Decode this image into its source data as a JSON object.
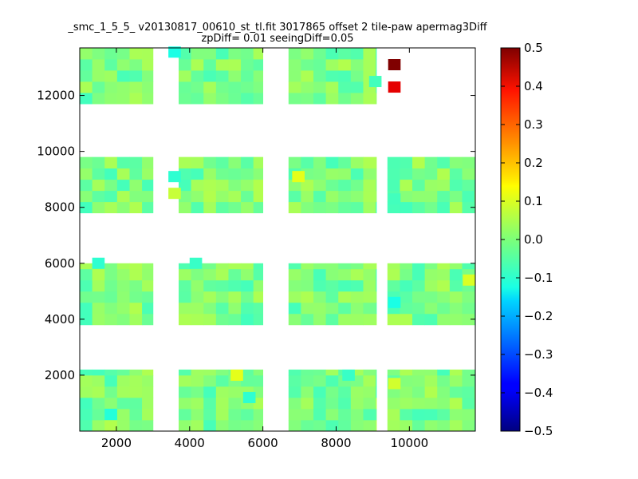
{
  "chart_data": {
    "type": "heatmap",
    "title": "_smc_1_5_5_ v20130817_00610_st_tl.fit 3017865 offset 2 tile-paw apermag3Diff",
    "subtitle": "zpDiff= 0.01 seeingDiff=0.05",
    "xlabel": "",
    "ylabel": "",
    "xlim": [
      1000,
      11800
    ],
    "ylim": [
      0,
      13700
    ],
    "x_ticks": [
      2000,
      4000,
      6000,
      8000,
      10000
    ],
    "y_ticks": [
      2000,
      4000,
      6000,
      8000,
      10000,
      12000
    ],
    "x_tick_labels": [
      "2000",
      "4000",
      "6000",
      "8000",
      "10000"
    ],
    "y_tick_labels": [
      "2000",
      "4000",
      "6000",
      "8000",
      "10000",
      "12000"
    ],
    "colorbar": {
      "min": -0.5,
      "max": 0.5,
      "colormap": "jet",
      "ticks": [
        0.5,
        0.4,
        0.3,
        0.2,
        0.1,
        0.0,
        -0.1,
        -0.2,
        -0.3,
        -0.4,
        -0.5
      ],
      "tick_labels": [
        "0.5",
        "0.4",
        "0.3",
        "0.2",
        "0.1",
        "0.0",
        "−0.1",
        "−0.2",
        "−0.3",
        "−0.4",
        "−0.5"
      ]
    },
    "cell_size": [
      340,
      400
    ],
    "grid": false,
    "detector_blocks": [
      {
        "x": [
          1000,
          3000
        ],
        "y": [
          11700,
          13700
        ]
      },
      {
        "x": [
          3700,
          6000
        ],
        "y": [
          11700,
          13700
        ]
      },
      {
        "x": [
          6700,
          9100
        ],
        "y": [
          11700,
          13700
        ]
      },
      {
        "x": [
          1000,
          3000
        ],
        "y": [
          7800,
          9800
        ]
      },
      {
        "x": [
          3700,
          6000
        ],
        "y": [
          7800,
          9800
        ]
      },
      {
        "x": [
          6700,
          9100
        ],
        "y": [
          7800,
          9800
        ]
      },
      {
        "x": [
          9400,
          11800
        ],
        "y": [
          7800,
          9800
        ]
      },
      {
        "x": [
          1000,
          3000
        ],
        "y": [
          3800,
          6000
        ]
      },
      {
        "x": [
          3700,
          6000
        ],
        "y": [
          3800,
          6000
        ]
      },
      {
        "x": [
          6700,
          9100
        ],
        "y": [
          3800,
          6000
        ]
      },
      {
        "x": [
          9400,
          11800
        ],
        "y": [
          3800,
          6000
        ]
      },
      {
        "x": [
          1000,
          3000
        ],
        "y": [
          0,
          2200
        ]
      },
      {
        "x": [
          3700,
          6000
        ],
        "y": [
          0,
          2200
        ]
      },
      {
        "x": [
          6700,
          9100
        ],
        "y": [
          0,
          2200
        ]
      },
      {
        "x": [
          9400,
          11800
        ],
        "y": [
          0,
          2200
        ]
      }
    ],
    "highlighted_cells": [
      {
        "x": 9420,
        "y": 12900,
        "value": 0.5
      },
      {
        "x": 9420,
        "y": 12100,
        "value": 0.4
      },
      {
        "x": 3420,
        "y": 13350,
        "value": -0.1
      },
      {
        "x": 3420,
        "y": 8900,
        "value": -0.08
      },
      {
        "x": 3420,
        "y": 8300,
        "value": 0.07
      },
      {
        "x": 5120,
        "y": 1800,
        "value": 0.1
      },
      {
        "x": 5460,
        "y": 1000,
        "value": -0.08
      },
      {
        "x": 8170,
        "y": 1800,
        "value": -0.07
      },
      {
        "x": 6800,
        "y": 8900,
        "value": 0.1
      },
      {
        "x": 11460,
        "y": 5200,
        "value": 0.09
      },
      {
        "x": 1340,
        "y": 5800,
        "value": -0.08
      },
      {
        "x": 1680,
        "y": 400,
        "value": -0.09
      },
      {
        "x": 9420,
        "y": 1500,
        "value": 0.08
      },
      {
        "x": 9420,
        "y": 4400,
        "value": -0.1
      },
      {
        "x": 4000,
        "y": 5800,
        "value": -0.07
      },
      {
        "x": 9420,
        "y": 8100,
        "value": -0.06
      },
      {
        "x": 8900,
        "y": 12300,
        "value": -0.06
      }
    ]
  }
}
